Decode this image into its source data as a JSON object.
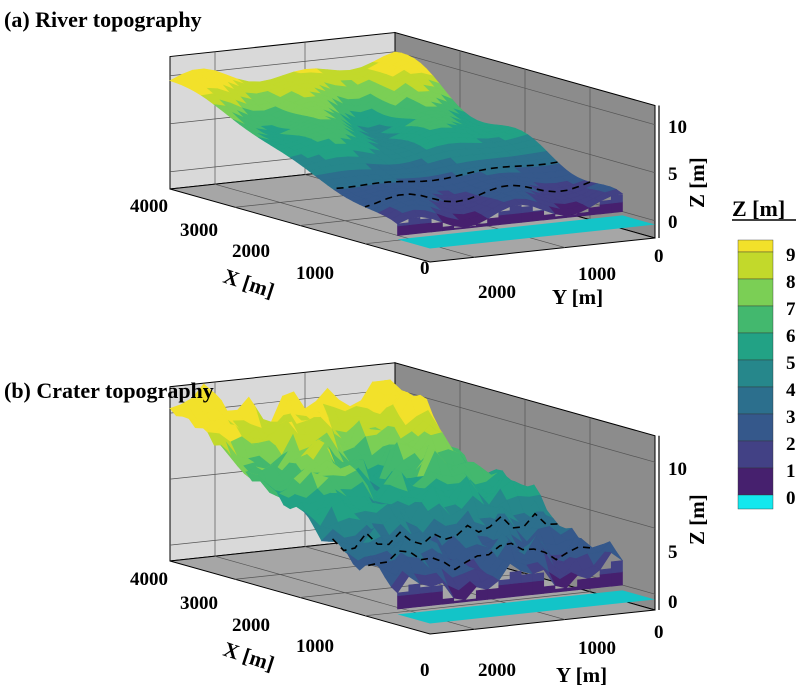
{
  "chart_data": [
    {
      "type": "surface",
      "title": "(a) River topography",
      "xlabel": "X [m]",
      "ylabel": "Y [m]",
      "zlabel": "Z [m]",
      "x_ticks": [
        "4000",
        "3000",
        "2000",
        "1000",
        "0"
      ],
      "y_ticks": [
        "2000",
        "1000",
        "0"
      ],
      "z_ticks": [
        "10",
        "5",
        "0"
      ],
      "xlim": [
        0,
        4000
      ],
      "zlim": [
        -2,
        12
      ],
      "grid": true
    },
    {
      "type": "surface",
      "title": "(b) Crater topography",
      "xlabel": "X [m]",
      "ylabel": "Y [m]",
      "zlabel": "Z [m]",
      "x_ticks": [
        "4000",
        "3000",
        "2000",
        "1000",
        "0"
      ],
      "y_ticks": [
        "2000",
        "1000",
        "0"
      ],
      "z_ticks": [
        "10",
        "5",
        "0"
      ],
      "xlim": [
        0,
        4000
      ],
      "zlim": [
        -2,
        12
      ],
      "grid": true
    }
  ],
  "colorbar": {
    "title": "Z [m]",
    "labels": [
      "9",
      "8",
      "7",
      "6",
      "5",
      "4",
      "3",
      "2",
      "1",
      "0"
    ],
    "colors": [
      "#f2e12a",
      "#c2d92b",
      "#7bcf55",
      "#43b86e",
      "#22a285",
      "#26878b",
      "#2c6f8d",
      "#35588b",
      "#424185",
      "#46206e",
      "#13e8ee"
    ]
  },
  "water_color": "#13c4c8",
  "wall_colors": {
    "left": "#d9d9d9",
    "back": "#8c8c8c",
    "floor": "#a6a6a6"
  }
}
